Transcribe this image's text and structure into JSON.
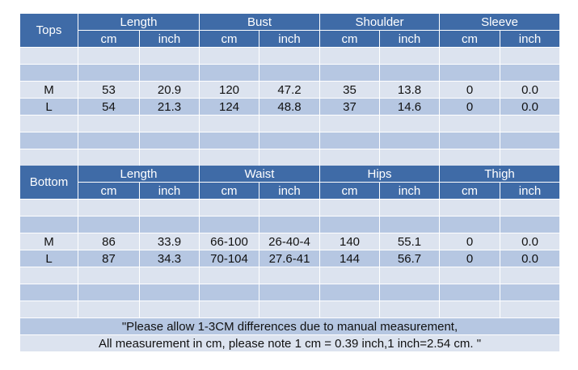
{
  "tables": [
    {
      "label": "Tops",
      "groups": [
        "Length",
        "Bust",
        "Shoulder",
        "Sleeve"
      ],
      "units": [
        "cm",
        "inch",
        "cm",
        "inch",
        "cm",
        "inch",
        "cm",
        "inch"
      ],
      "rows": [
        [
          "M",
          "53",
          "20.9",
          "120",
          "47.2",
          "35",
          "13.8",
          "0",
          "0.0"
        ],
        [
          "L",
          "54",
          "21.3",
          "124",
          "48.8",
          "37",
          "14.6",
          "0",
          "0.0"
        ]
      ]
    },
    {
      "label": "Bottom",
      "groups": [
        "Length",
        "Waist",
        "Hips",
        "Thigh"
      ],
      "units": [
        "cm",
        "inch",
        "cm",
        "inch",
        "cm",
        "inch",
        "cm",
        "inch"
      ],
      "rows": [
        [
          "M",
          "86",
          "33.9",
          "66-100",
          "26-40-4",
          "140",
          "55.1",
          "0",
          "0.0"
        ],
        [
          "L",
          "87",
          "34.3",
          "70-104",
          "27.6-41",
          "144",
          "56.7",
          "0",
          "0.0"
        ]
      ]
    }
  ],
  "note": [
    "\"Please allow 1-3CM differences due to manual measurement,",
    "All measurement in cm, please note 1 cm = 0.39 inch,1 inch=2.54 cm. \""
  ]
}
